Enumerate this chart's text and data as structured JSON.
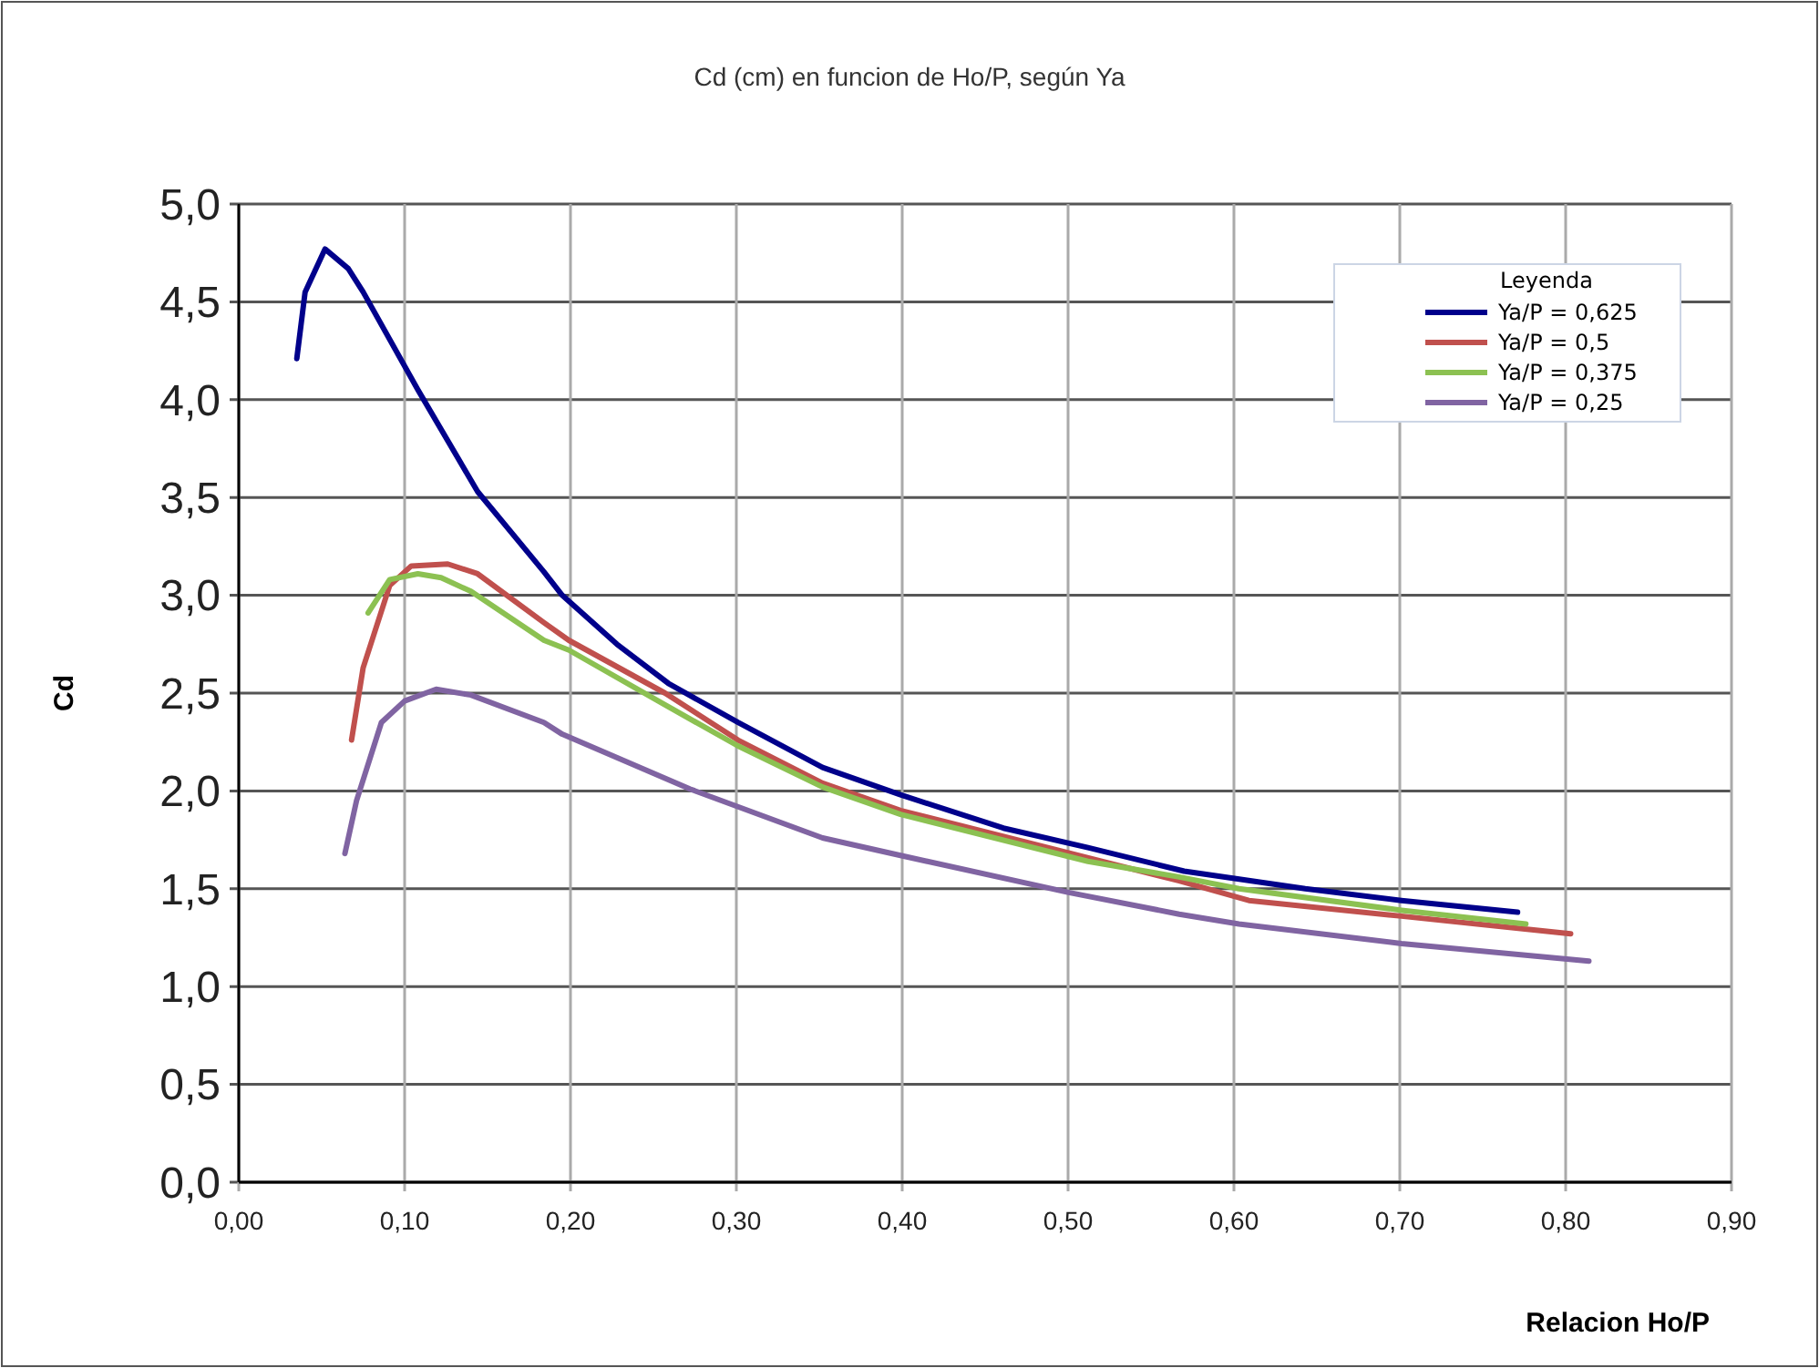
{
  "chart_data": {
    "type": "line",
    "title": "Cd (cm) en funcion de Ho/P, según Ya",
    "xlabel": "Relacion Ho/P",
    "ylabel": "Cd",
    "legend_title": "Leyenda",
    "legend": "top right",
    "grid": true,
    "marker": "none",
    "line_style": "solid",
    "xlim": [
      0,
      0.9
    ],
    "ylim": [
      0,
      5
    ],
    "xticks": [
      {
        "value": 0,
        "label": "0,00"
      },
      {
        "value": 0.1,
        "label": "0,10"
      },
      {
        "value": 0.2,
        "label": "0,20"
      },
      {
        "value": 0.3,
        "label": "0,30"
      },
      {
        "value": 0.4,
        "label": "0,40"
      },
      {
        "value": 0.5,
        "label": "0,50"
      },
      {
        "value": 0.6,
        "label": "0,60"
      },
      {
        "value": 0.7,
        "label": "0,70"
      },
      {
        "value": 0.8,
        "label": "0,80"
      },
      {
        "value": 0.9,
        "label": "0,90"
      }
    ],
    "yticks": [
      {
        "value": 0,
        "label": "0,0"
      },
      {
        "value": 0.5,
        "label": "0,5"
      },
      {
        "value": 1,
        "label": "1,0"
      },
      {
        "value": 1.5,
        "label": "1,5"
      },
      {
        "value": 2,
        "label": "2,0"
      },
      {
        "value": 2.5,
        "label": "2,5"
      },
      {
        "value": 3,
        "label": "3,0"
      },
      {
        "value": 3.5,
        "label": "3,5"
      },
      {
        "value": 4,
        "label": "4,0"
      },
      {
        "value": 4.5,
        "label": "4,5"
      },
      {
        "value": 5,
        "label": "5,0"
      }
    ],
    "series": [
      {
        "name": "Ya/P = 0,625",
        "color": "#00008b",
        "x": [
          0.035,
          0.04,
          0.052,
          0.066,
          0.075,
          0.108,
          0.144,
          0.184,
          0.195,
          0.228,
          0.259,
          0.301,
          0.352,
          0.399,
          0.461,
          0.512,
          0.57,
          0.643,
          0.701,
          0.771
        ],
        "values": [
          4.21,
          4.55,
          4.77,
          4.67,
          4.55,
          4.05,
          3.53,
          3.12,
          3.0,
          2.75,
          2.55,
          2.35,
          2.12,
          1.98,
          1.81,
          1.71,
          1.59,
          1.5,
          1.44,
          1.38
        ]
      },
      {
        "name": "Ya/P = 0,5",
        "color": "#c0504d",
        "x": [
          0.068,
          0.075,
          0.091,
          0.104,
          0.126,
          0.144,
          0.184,
          0.199,
          0.257,
          0.301,
          0.352,
          0.399,
          0.567,
          0.609,
          0.701,
          0.803
        ],
        "values": [
          2.26,
          2.63,
          3.05,
          3.15,
          3.16,
          3.11,
          2.86,
          2.77,
          2.5,
          2.26,
          2.04,
          1.9,
          1.54,
          1.44,
          1.36,
          1.27
        ]
      },
      {
        "name": "Ya/P = 0,375",
        "color": "#8cc152",
        "x": [
          0.078,
          0.091,
          0.108,
          0.122,
          0.14,
          0.184,
          0.199,
          0.257,
          0.301,
          0.352,
          0.399,
          0.512,
          0.567,
          0.603,
          0.701,
          0.776
        ],
        "values": [
          2.91,
          3.08,
          3.11,
          3.09,
          3.02,
          2.77,
          2.72,
          2.44,
          2.23,
          2.02,
          1.88,
          1.64,
          1.56,
          1.5,
          1.39,
          1.32
        ]
      },
      {
        "name": "Ya/P = 0,25",
        "color": "#8064a2",
        "x": [
          0.064,
          0.071,
          0.086,
          0.1,
          0.119,
          0.14,
          0.184,
          0.195,
          0.272,
          0.352,
          0.399,
          0.501,
          0.567,
          0.603,
          0.701,
          0.814
        ],
        "values": [
          1.68,
          1.95,
          2.35,
          2.46,
          2.52,
          2.49,
          2.35,
          2.29,
          2.01,
          1.76,
          1.67,
          1.48,
          1.37,
          1.32,
          1.22,
          1.13
        ]
      }
    ]
  }
}
